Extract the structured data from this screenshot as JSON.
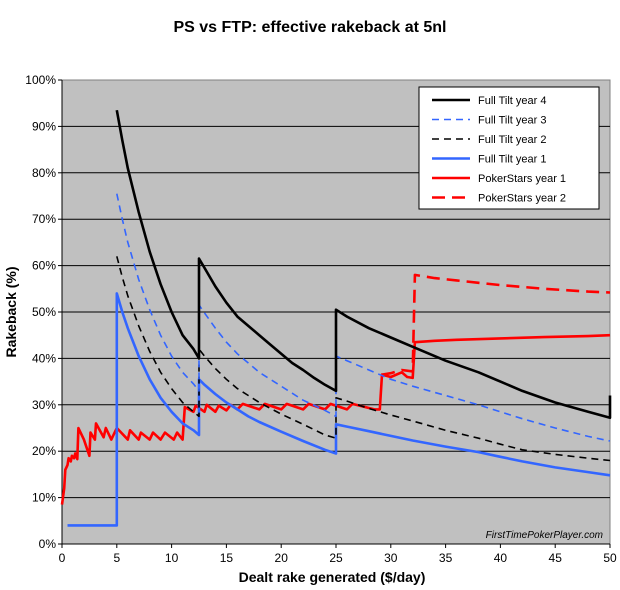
{
  "chart_data": {
    "type": "line",
    "title": "PS vs FTP: effective rakeback at 5nl",
    "xlabel": "Dealt rake generated ($/day)",
    "ylabel": "Rakeback (%)",
    "xlim": [
      0,
      50
    ],
    "ylim": [
      0,
      100
    ],
    "x_ticks": [
      0,
      5,
      10,
      15,
      20,
      25,
      30,
      35,
      40,
      45,
      50
    ],
    "y_ticks": [
      0,
      10,
      20,
      30,
      40,
      50,
      60,
      70,
      80,
      90,
      100
    ],
    "x_tick_labels": [
      "0",
      "5",
      "10",
      "15",
      "20",
      "25",
      "30",
      "35",
      "40",
      "45",
      "50"
    ],
    "y_tick_labels": [
      "0%",
      "10%",
      "20%",
      "30%",
      "40%",
      "50%",
      "60%",
      "70%",
      "80%",
      "90%",
      "100%"
    ],
    "plot_background": "#c0c0c0",
    "legend_position": "top-right",
    "annotation": "FirstTimePokerPlayer.com",
    "series": [
      {
        "name": "Full Tilt year 4",
        "color": "#000000",
        "dash": "solid",
        "points": [
          [
            5,
            93.5
          ],
          [
            5.5,
            87
          ],
          [
            6,
            81
          ],
          [
            7,
            71.5
          ],
          [
            8,
            63
          ],
          [
            9,
            56
          ],
          [
            10,
            50
          ],
          [
            11,
            45
          ],
          [
            12,
            42
          ],
          [
            12.5,
            40
          ],
          [
            12.5,
            61.5
          ],
          [
            13,
            59.5
          ],
          [
            14,
            55.5
          ],
          [
            15,
            52
          ],
          [
            16,
            49
          ],
          [
            17,
            47
          ],
          [
            18,
            45
          ],
          [
            19,
            43
          ],
          [
            20,
            41
          ],
          [
            21,
            39
          ],
          [
            22,
            37.5
          ],
          [
            23,
            35.8
          ],
          [
            24,
            34.3
          ],
          [
            25,
            33
          ],
          [
            25,
            50.5
          ],
          [
            26,
            49
          ],
          [
            28,
            46.5
          ],
          [
            30,
            44.5
          ],
          [
            32,
            42.5
          ],
          [
            35,
            39.5
          ],
          [
            38,
            37
          ],
          [
            40,
            35
          ],
          [
            42,
            33
          ],
          [
            45,
            30.5
          ],
          [
            48,
            28.5
          ],
          [
            50,
            27.2
          ],
          [
            50,
            32
          ]
        ]
      },
      {
        "name": "Full Tilt year 3",
        "color": "#3366ff",
        "dash": "dashed",
        "points": [
          [
            5,
            75.5
          ],
          [
            5.5,
            70
          ],
          [
            6,
            65
          ],
          [
            7,
            57
          ],
          [
            8,
            50.5
          ],
          [
            9,
            45
          ],
          [
            10,
            40.5
          ],
          [
            11,
            37
          ],
          [
            12,
            34.5
          ],
          [
            12.5,
            33
          ],
          [
            12.5,
            51.5
          ],
          [
            13,
            49.8
          ],
          [
            14,
            46.5
          ],
          [
            15,
            43.5
          ],
          [
            16,
            41
          ],
          [
            17,
            39
          ],
          [
            18,
            37
          ],
          [
            20,
            34
          ],
          [
            22,
            31
          ],
          [
            24,
            28.8
          ],
          [
            25,
            27.5
          ],
          [
            25,
            40.5
          ],
          [
            26,
            39.5
          ],
          [
            28,
            37.5
          ],
          [
            30,
            35.5
          ],
          [
            32,
            34
          ],
          [
            35,
            32
          ],
          [
            38,
            30
          ],
          [
            40,
            28.5
          ],
          [
            42,
            27
          ],
          [
            45,
            25
          ],
          [
            48,
            23.2
          ],
          [
            50,
            22.2
          ]
        ]
      },
      {
        "name": "Full Tilt year 2",
        "color": "#000000",
        "dash": "dashed",
        "points": [
          [
            5,
            62
          ],
          [
            5.5,
            57.5
          ],
          [
            6,
            53.5
          ],
          [
            7,
            47
          ],
          [
            8,
            41.5
          ],
          [
            9,
            37
          ],
          [
            10,
            33.5
          ],
          [
            11,
            30.5
          ],
          [
            12,
            28.5
          ],
          [
            12.5,
            27.5
          ],
          [
            12.5,
            42
          ],
          [
            13,
            40.5
          ],
          [
            14,
            37.8
          ],
          [
            15,
            35.5
          ],
          [
            16,
            33.5
          ],
          [
            17,
            32
          ],
          [
            18,
            30.5
          ],
          [
            20,
            28
          ],
          [
            22,
            25.8
          ],
          [
            24,
            23.5
          ],
          [
            25,
            22.8
          ],
          [
            25,
            31.5
          ],
          [
            26,
            30.8
          ],
          [
            28,
            29.2
          ],
          [
            30,
            27.8
          ],
          [
            32,
            26.5
          ],
          [
            35,
            24.5
          ],
          [
            38,
            22.8
          ],
          [
            40,
            21.5
          ],
          [
            42,
            20.3
          ],
          [
            45,
            19.3
          ],
          [
            48,
            18.5
          ],
          [
            50,
            18
          ]
        ]
      },
      {
        "name": "Full Tilt year 1",
        "color": "#3366ff",
        "dash": "solid",
        "points": [
          [
            0.5,
            4
          ],
          [
            5,
            4
          ],
          [
            5,
            54
          ],
          [
            5.5,
            50
          ],
          [
            6,
            46.5
          ],
          [
            7,
            40.5
          ],
          [
            8,
            35.5
          ],
          [
            9,
            31.5
          ],
          [
            10,
            28.5
          ],
          [
            11,
            26
          ],
          [
            12,
            24.5
          ],
          [
            12.5,
            23.5
          ],
          [
            12.5,
            35.5
          ],
          [
            13,
            34.3
          ],
          [
            14,
            32.3
          ],
          [
            15,
            30.5
          ],
          [
            16,
            29
          ],
          [
            17,
            27.5
          ],
          [
            18,
            26.3
          ],
          [
            20,
            24.2
          ],
          [
            22,
            22.2
          ],
          [
            24,
            20.3
          ],
          [
            25,
            19.5
          ],
          [
            25,
            25.8
          ],
          [
            26,
            25.3
          ],
          [
            28,
            24.3
          ],
          [
            30,
            23.3
          ],
          [
            32,
            22.3
          ],
          [
            35,
            21
          ],
          [
            38,
            19.8
          ],
          [
            40,
            18.8
          ],
          [
            42,
            17.8
          ],
          [
            45,
            16.5
          ],
          [
            48,
            15.5
          ],
          [
            50,
            14.8
          ]
        ]
      },
      {
        "name": "PokerStars year 1",
        "color": "#ff0000",
        "dash": "solid",
        "points": [
          [
            0,
            8.5
          ],
          [
            0.2,
            12
          ],
          [
            0.3,
            16
          ],
          [
            0.5,
            17
          ],
          [
            0.6,
            18.5
          ],
          [
            0.8,
            17.8
          ],
          [
            0.9,
            19
          ],
          [
            1.1,
            18.5
          ],
          [
            1.2,
            19.5
          ],
          [
            1.4,
            18.3
          ],
          [
            1.5,
            25
          ],
          [
            2,
            22.5
          ],
          [
            2.5,
            19
          ],
          [
            2.6,
            24
          ],
          [
            3,
            22.5
          ],
          [
            3.1,
            26
          ],
          [
            3.8,
            23
          ],
          [
            4,
            25
          ],
          [
            4.5,
            22.5
          ],
          [
            5,
            25
          ],
          [
            6,
            22.5
          ],
          [
            6.2,
            24.5
          ],
          [
            7,
            22.5
          ],
          [
            7.2,
            24
          ],
          [
            8,
            22.5
          ],
          [
            8.3,
            24
          ],
          [
            9,
            22.5
          ],
          [
            9.4,
            24
          ],
          [
            10.2,
            22.5
          ],
          [
            10.5,
            24
          ],
          [
            11,
            22.5
          ],
          [
            11.2,
            29.5
          ],
          [
            12,
            28.5
          ],
          [
            12.2,
            29.8
          ],
          [
            13,
            28.5
          ],
          [
            13.2,
            30
          ],
          [
            14,
            28.5
          ],
          [
            14.3,
            29.8
          ],
          [
            15,
            28.8
          ],
          [
            15.4,
            30
          ],
          [
            16,
            29
          ],
          [
            16.5,
            30.2
          ],
          [
            18,
            29
          ],
          [
            18.5,
            30.2
          ],
          [
            20,
            29
          ],
          [
            20.5,
            30.2
          ],
          [
            22,
            29
          ],
          [
            22.5,
            30.2
          ],
          [
            24,
            29
          ],
          [
            24.5,
            30.2
          ],
          [
            26,
            29
          ],
          [
            26.5,
            30.2
          ],
          [
            28.5,
            29
          ],
          [
            29,
            29
          ],
          [
            29.2,
            36.5
          ],
          [
            30,
            36
          ],
          [
            31,
            37
          ],
          [
            31.5,
            36
          ],
          [
            32,
            35.8
          ],
          [
            32.2,
            43.5
          ],
          [
            34,
            43.8
          ],
          [
            36,
            44
          ],
          [
            40,
            44.3
          ],
          [
            44,
            44.6
          ],
          [
            48,
            44.8
          ],
          [
            50,
            45
          ]
        ]
      },
      {
        "name": "PokerStars year 2",
        "color": "#ff0000",
        "dash": "longdash",
        "points": [
          [
            29.2,
            36.5
          ],
          [
            30,
            36.8
          ],
          [
            31,
            37.5
          ],
          [
            32,
            37.2
          ],
          [
            32.2,
            58
          ],
          [
            34,
            57.3
          ],
          [
            36,
            56.8
          ],
          [
            38,
            56.3
          ],
          [
            40,
            55.8
          ],
          [
            42,
            55.4
          ],
          [
            44,
            55
          ],
          [
            46,
            54.7
          ],
          [
            48,
            54.4
          ],
          [
            50,
            54.2
          ]
        ]
      }
    ]
  }
}
